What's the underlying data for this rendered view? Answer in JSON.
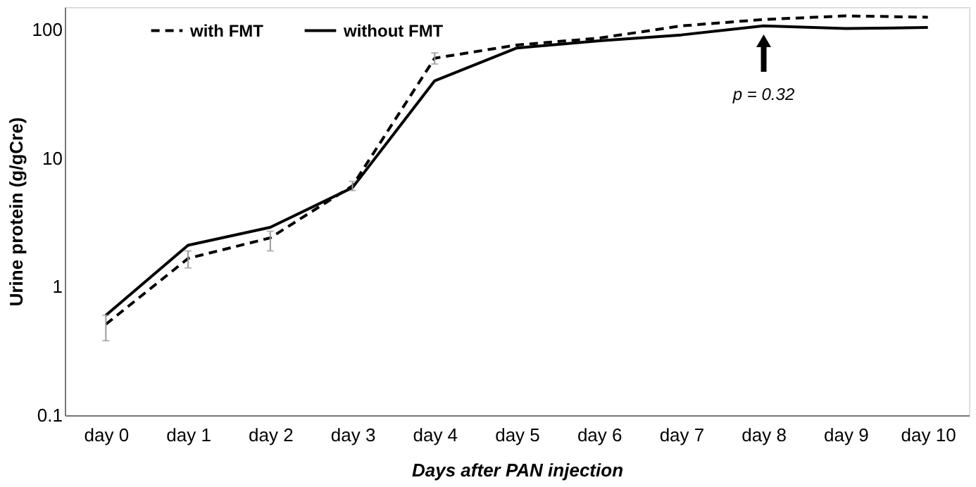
{
  "chart_data": {
    "type": "line",
    "xlabel": "Days after PAN injection",
    "ylabel": "Urine protein (g/gCre)",
    "categories": [
      "day 0",
      "day 1",
      "day 2",
      "day 3",
      "day 4",
      "day 5",
      "day 6",
      "day 7",
      "day 8",
      "day 9",
      "day 10"
    ],
    "series": [
      {
        "name": "with FMT",
        "color": "#000000",
        "line_style": "dashed",
        "values": [
          0.51,
          1.66,
          2.4,
          6.1,
          60,
          76,
          86,
          107,
          120,
          128,
          125
        ],
        "errors": [
          [
            0.38,
            0.6
          ],
          [
            1.4,
            1.9
          ],
          [
            1.9,
            2.7
          ],
          [
            5.6,
            6.6
          ],
          [
            54,
            66
          ],
          null,
          null,
          null,
          null,
          null,
          null
        ]
      },
      {
        "name": "without FMT",
        "color": "#000000",
        "line_style": "solid",
        "values": [
          0.6,
          2.1,
          2.9,
          5.9,
          40,
          72,
          82,
          91,
          107,
          102,
          104
        ]
      }
    ],
    "log": "y",
    "ylim": [
      0.1,
      150
    ],
    "yticks": [
      0.1,
      1,
      10,
      100
    ],
    "grid": false,
    "legend": "top left",
    "marker": "none",
    "annotations": [
      "p = 0.32"
    ]
  }
}
